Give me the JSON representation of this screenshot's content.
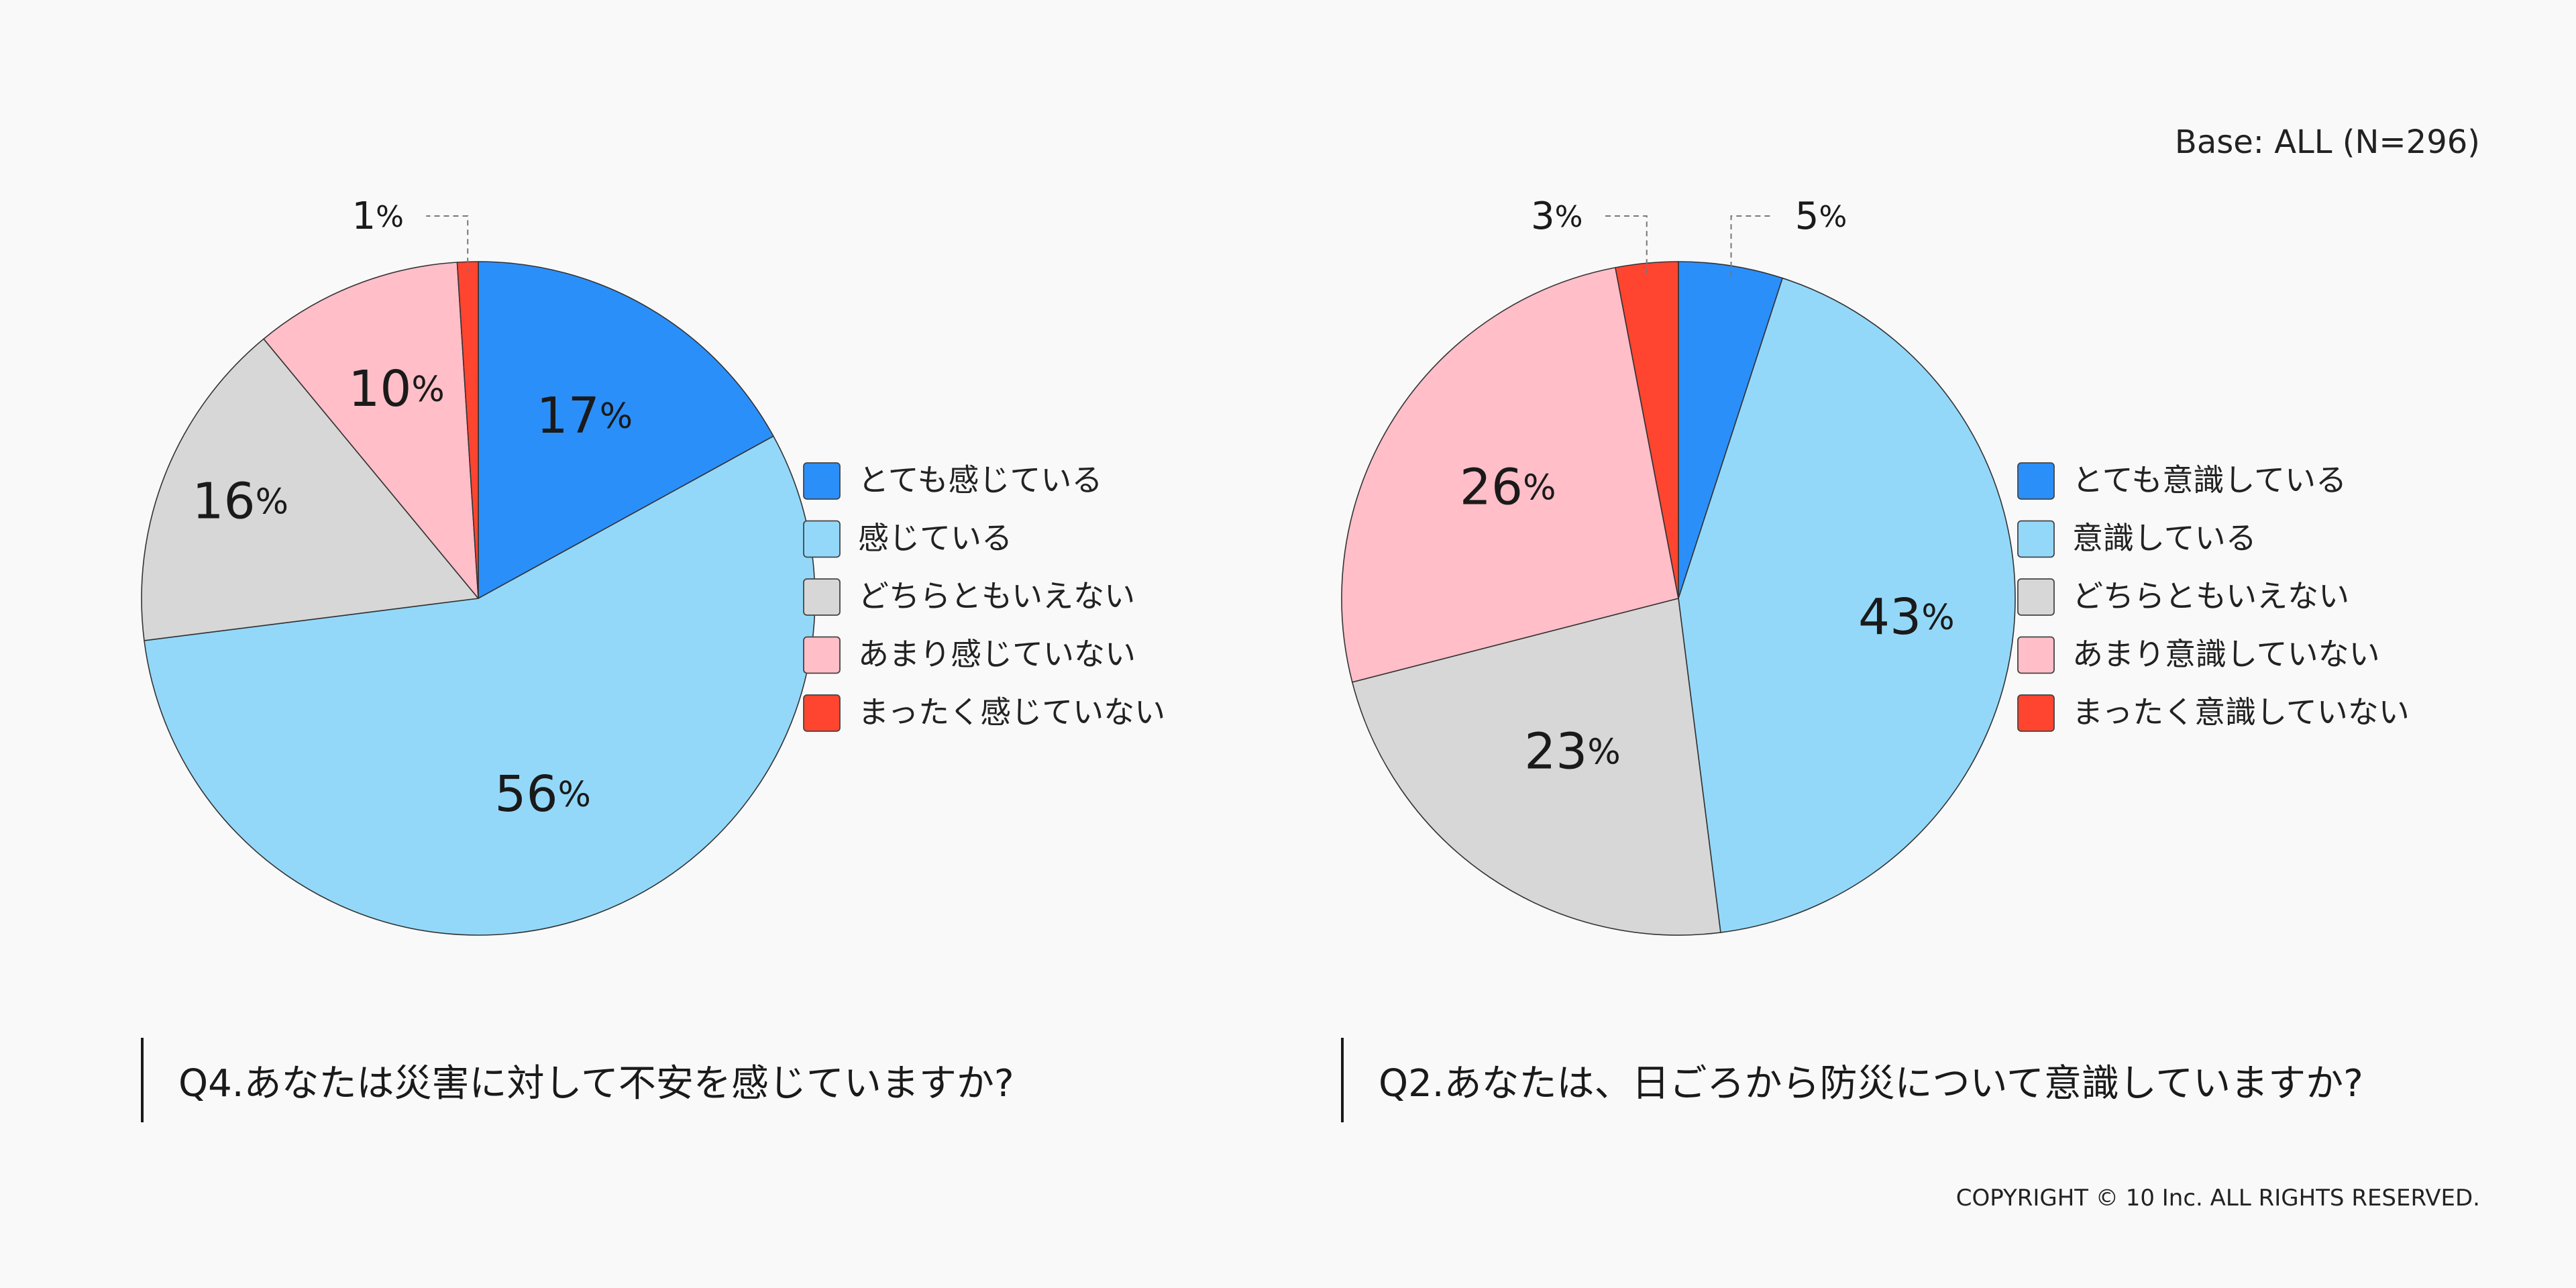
{
  "base_note": "Base: ALL (N=296)",
  "copyright": "COPYRIGHT © 10 Inc. ALL RIGHTS RESERVED.",
  "percent_suffix": "%",
  "chart_data": [
    {
      "type": "pie",
      "question": "Q4.あなたは災害に対して不安を感じていますか?",
      "categories": [
        "とても感じている",
        "感じている",
        "どちらともいえない",
        "あまり感じていない",
        "まったく感じていない"
      ],
      "values": [
        17,
        56,
        16,
        10,
        1
      ],
      "colors": [
        "#2b8ffa",
        "#94d8f9",
        "#d7d7d7",
        "#ffbec8",
        "#ff4530"
      ],
      "labels": [
        "17",
        "56",
        "16",
        "10",
        "1"
      ],
      "legend_position": "right"
    },
    {
      "type": "pie",
      "question": "Q2.あなたは、日ごろから防災について意識していますか?",
      "categories": [
        "とても意識している",
        "意識している",
        "どちらともいえない",
        "あまり意識していない",
        "まったく意識していない"
      ],
      "values": [
        5,
        43,
        23,
        26,
        3
      ],
      "colors": [
        "#2b8ffa",
        "#94d8f9",
        "#d7d7d7",
        "#ffbec8",
        "#ff4530"
      ],
      "labels": [
        "5",
        "43",
        "23",
        "26",
        "3"
      ],
      "legend_position": "right"
    }
  ]
}
